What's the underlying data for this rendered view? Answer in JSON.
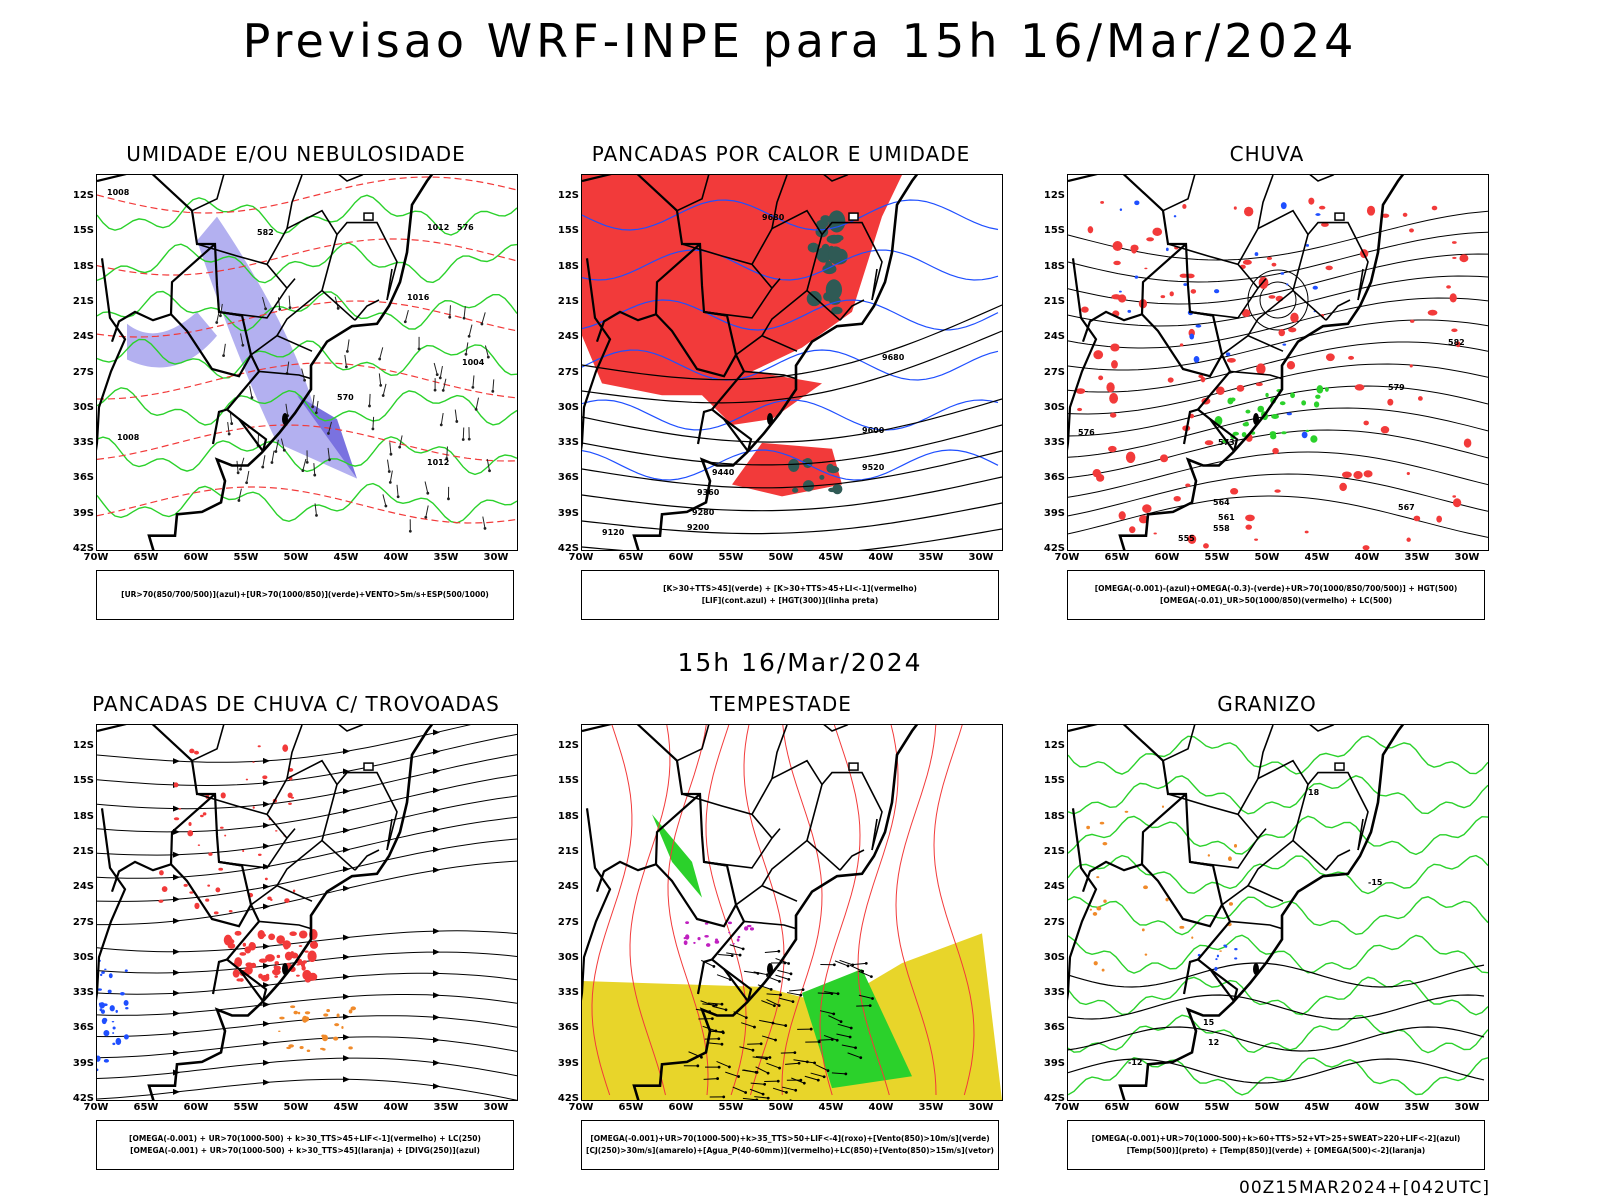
{
  "title": "Previsao WRF-INPE  para 15h 16/Mar/2024",
  "subtitle": "15h 16/Mar/2024",
  "footer": "00Z15MAR2024+[042UTC]",
  "axes": {
    "lat_labels": [
      "12S",
      "15S",
      "18S",
      "21S",
      "24S",
      "27S",
      "30S",
      "33S",
      "36S",
      "39S",
      "42S"
    ],
    "lon_labels": [
      "70W",
      "65W",
      "60W",
      "55W",
      "50W",
      "45W",
      "40W",
      "35W",
      "30W"
    ]
  },
  "colors": {
    "red": "#f23a3a",
    "green": "#2bd12b",
    "blue": "#1f4fff",
    "lilac": "#b3b0f0",
    "violet": "#7a72e0",
    "yellow": "#e8d52a",
    "teal": "#2f5a55",
    "orange": "#f08a2a",
    "purple": "#c020c0"
  },
  "panels": [
    {
      "id": "umidade",
      "title": "UMIDADE E/OU NEBULOSIDADE",
      "legend": [
        "[UR>70(850/700/500)](azul)+[UR>70(1000/850)](verde)+VENTO>5m/s+ESP(500/1000)"
      ]
    },
    {
      "id": "pancadas-calor",
      "title": "PANCADAS POR CALOR E UMIDADE",
      "legend": [
        "[K>30+TTS>45](verde)  +  [K>30+TTS>45+LI<-1](vermelho)",
        "[LIF](cont.azul)  +  [HGT(300)](linha preta)"
      ]
    },
    {
      "id": "chuva",
      "title": "CHUVA",
      "legend": [
        "[OMEGA(-0.001)-(azul)+OMEGA(-0.3)-(verde)+UR>70(1000/850/700/500)]  +  HGT(500)",
        "[OMEGA(-0.01)_UR>50(1000/850)(vermelho)  +  LC(500)"
      ]
    },
    {
      "id": "trovoadas",
      "title": "PANCADAS DE CHUVA C/ TROVOADAS",
      "legend": [
        "[OMEGA(-0.001)  +  UR>70(1000-500)  +  k>30_TTS>45+LIF<-1](vermelho)  +  LC(250)",
        "[OMEGA(-0.001)  +  UR>70(1000-500)  +  k>30_TTS>45](laranja)  +  [DIVG(250)](azul)"
      ]
    },
    {
      "id": "tempestade",
      "title": "TEMPESTADE",
      "legend": [
        "[OMEGA(-0.001)+UR>70(1000-500)+k>35_TTS>50+LIF<-4](roxo)+[Vento(850)>10m/s](verde)",
        "[CJ(250)>30m/s](amarelo)+[Agua_P(40-60mm)](vermelho)+LC(850)+[Vento(850)>15m/s](vetor)"
      ]
    },
    {
      "id": "granizo",
      "title": "GRANIZO",
      "legend": [
        "[OMEGA(-0.001)+UR>70(1000-500)+k>60+TTS>52+VT>25+SWEAT>220+LIF<-2](azul)",
        "[Temp(500)](preto)  +  [Temp(850)](verde)  +  [OMEGA(500)<-2](laranja)"
      ]
    }
  ],
  "contour_labels": {
    "umidade": [
      "1008",
      "1012",
      "1016",
      "1004",
      "1008",
      "1012",
      "576",
      "570",
      "582"
    ],
    "pancadas-calor": [
      "9680",
      "9680",
      "9600",
      "9520",
      "9440",
      "9360",
      "9280",
      "9200",
      "9120"
    ],
    "chuva": [
      "573",
      "576",
      "579",
      "582",
      "567",
      "564",
      "561",
      "558",
      "555"
    ],
    "granizo": [
      "15",
      "12",
      "18",
      "-15",
      "-12"
    ]
  }
}
